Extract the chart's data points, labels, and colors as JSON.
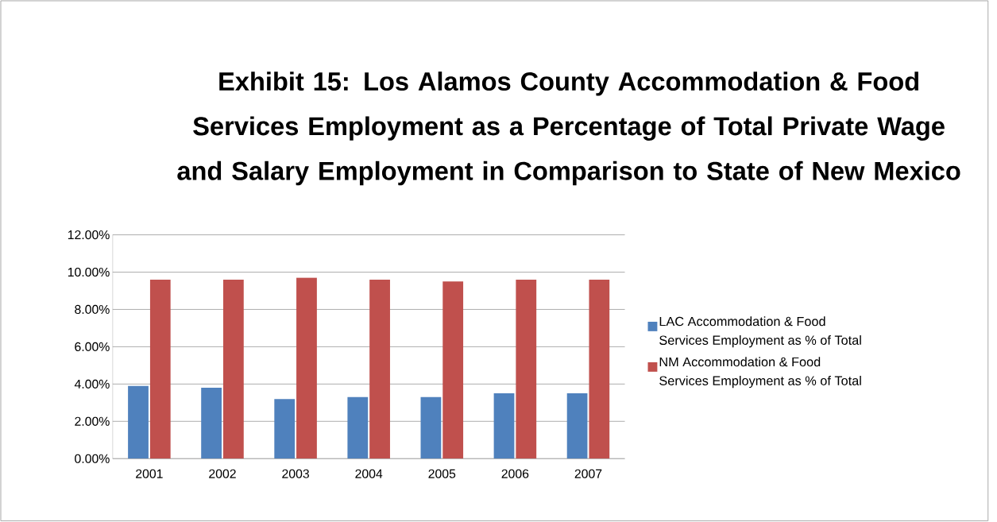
{
  "chart_data": {
    "type": "bar",
    "title": "Exhibit 15: Los Alamos County Accommodation & Food Services Employment as a Percentage of Total Private Wage and Salary Employment in Comparison to State of New Mexico",
    "categories": [
      "2001",
      "2002",
      "2003",
      "2004",
      "2005",
      "2006",
      "2007"
    ],
    "series": [
      {
        "name": "LAC Accommodation & Food Services Employment as % of Total",
        "color": "#4f81bd",
        "values": [
          3.9,
          3.8,
          3.2,
          3.3,
          3.3,
          3.5,
          3.5
        ]
      },
      {
        "name": "NM Accommodation & Food Services Employment as % of Total",
        "color": "#c0504d",
        "values": [
          9.6,
          9.6,
          9.7,
          9.6,
          9.5,
          9.6,
          9.6
        ]
      }
    ],
    "ylim": [
      0,
      12
    ],
    "yticks": [
      {
        "value": 0,
        "label": "0.00%"
      },
      {
        "value": 2,
        "label": "2.00%"
      },
      {
        "value": 4,
        "label": "4.00%"
      },
      {
        "value": 6,
        "label": "6.00%"
      },
      {
        "value": 8,
        "label": "8.00%"
      },
      {
        "value": 10,
        "label": "10.00%"
      },
      {
        "value": 12,
        "label": "12.00%"
      }
    ],
    "grid": "y",
    "legend": "right"
  }
}
